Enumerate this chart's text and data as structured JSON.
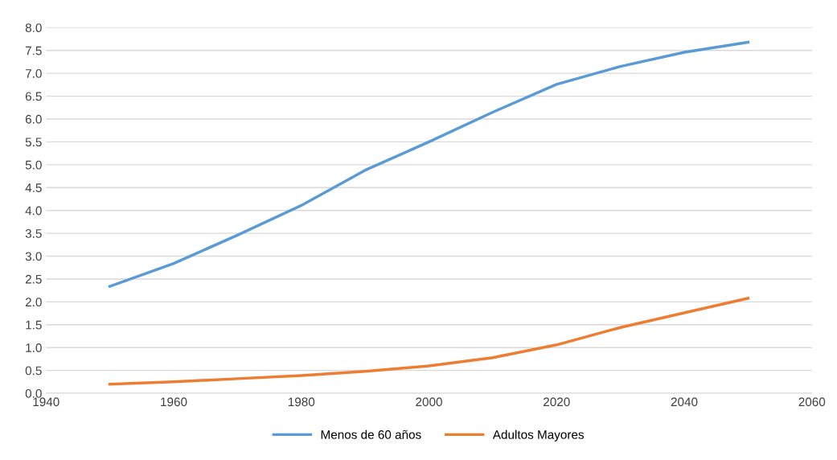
{
  "chart_data": {
    "type": "line",
    "x": [
      1950,
      1960,
      1970,
      1980,
      1990,
      2000,
      2010,
      2020,
      2030,
      2040,
      2050
    ],
    "series": [
      {
        "name": "Menos de 60 años",
        "color": "#5b9bd5",
        "values": [
          2.34,
          2.84,
          3.46,
          4.11,
          4.88,
          5.5,
          6.15,
          6.76,
          7.15,
          7.46,
          7.68
        ]
      },
      {
        "name": "Adultos Mayores",
        "color": "#ed7d31",
        "values": [
          0.2,
          0.25,
          0.32,
          0.39,
          0.48,
          0.6,
          0.78,
          1.06,
          1.44,
          1.76,
          2.08
        ]
      }
    ],
    "xlim": [
      1940,
      2060
    ],
    "xticks": [
      1940,
      1960,
      1980,
      2000,
      2020,
      2040,
      2060
    ],
    "ylim": [
      0,
      8
    ],
    "yticks": [
      {
        "value": 0,
        "label": "0.0"
      },
      0.5,
      {
        "value": 1,
        "label": "1.0"
      },
      1.5,
      {
        "value": 2,
        "label": "2.0"
      },
      2.5,
      {
        "value": 3,
        "label": "3.0"
      },
      3.5,
      {
        "value": 4,
        "label": "4.0"
      },
      4.5,
      {
        "value": 5,
        "label": "5.0"
      },
      5.5,
      {
        "value": 6,
        "label": "6.0"
      },
      6.5,
      {
        "value": 7,
        "label": "7.0"
      },
      7.5,
      {
        "value": 8,
        "label": "8.0"
      }
    ],
    "grid": "y",
    "legend": "bottom",
    "marker": "none",
    "line_style": "solid"
  }
}
